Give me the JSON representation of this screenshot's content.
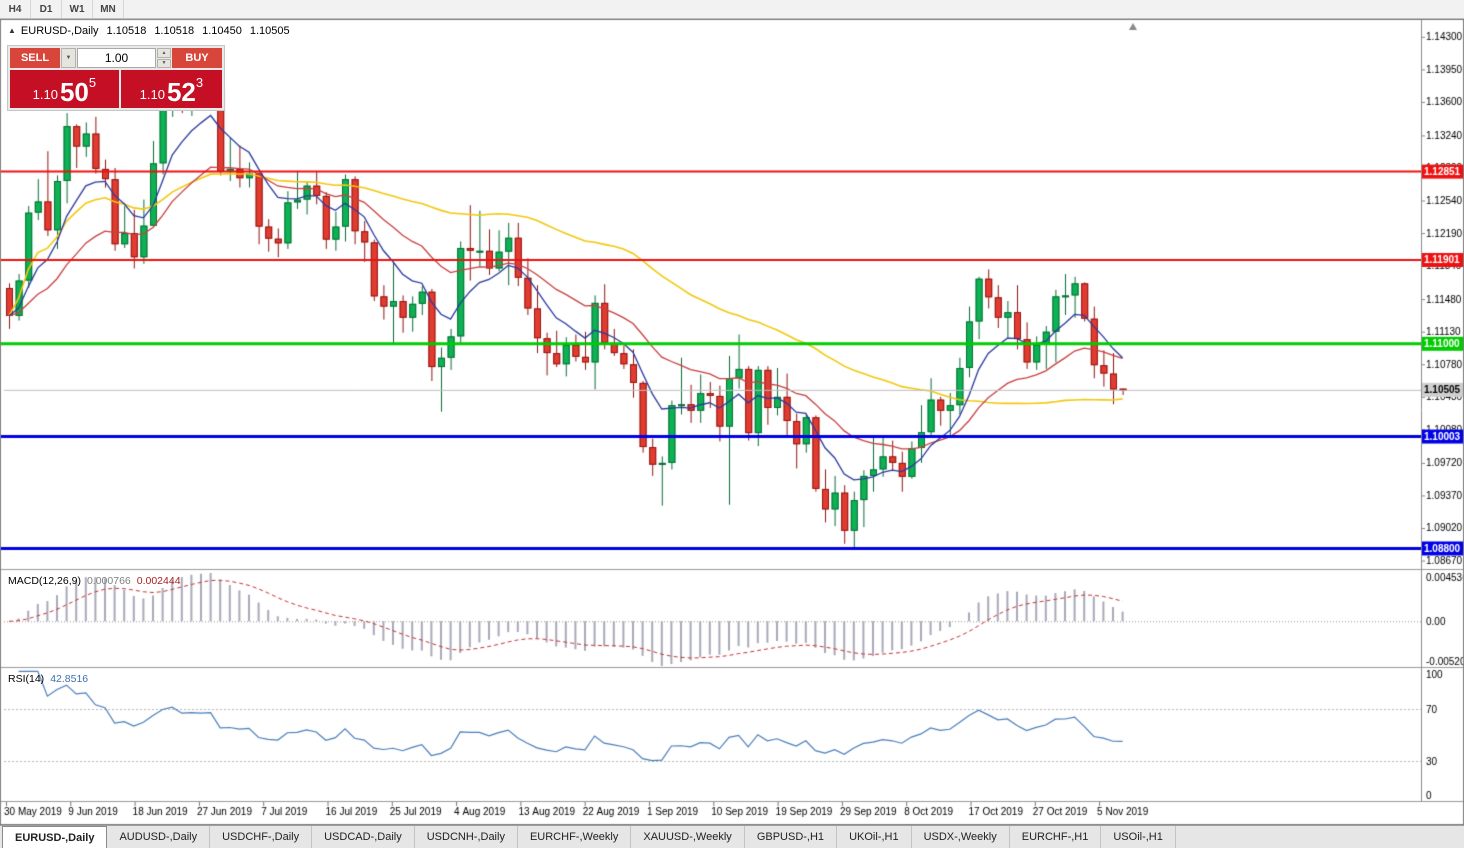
{
  "toolbar": {
    "timeframes": [
      "H4",
      "D1",
      "W1",
      "MN"
    ]
  },
  "chart": {
    "title": {
      "collapse_icon": "▲",
      "symbol": "EURUSD-,Daily",
      "open": "1.10518",
      "high": "1.10518",
      "low": "1.10450",
      "close": "1.10505"
    },
    "scale": {
      "p_max": 1.1447,
      "p_min": 1.0859
    },
    "y_axis_labels": [
      "1.14300",
      "1.13950",
      "1.13600",
      "1.13240",
      "1.12890",
      "1.12540",
      "1.12190",
      "1.11840",
      "1.11480",
      "1.11130",
      "1.10780",
      "1.10430",
      "1.10080",
      "1.09720",
      "1.09370",
      "1.09020",
      "1.08670"
    ],
    "x_axis_labels": [
      "30 May 2019",
      "9 Jun 2019",
      "18 Jun 2019",
      "27 Jun 2019",
      "7 Jul 2019",
      "16 Jul 2019",
      "25 Jul 2019",
      "4 Aug 2019",
      "13 Aug 2019",
      "22 Aug 2019",
      "1 Sep 2019",
      "10 Sep 2019",
      "19 Sep 2019",
      "29 Sep 2019",
      "8 Oct 2019",
      "17 Oct 2019",
      "27 Oct 2019",
      "5 Nov 2019"
    ],
    "price_levels": [
      {
        "value": 1.12851,
        "label": "1.12851",
        "color": "#ee1111",
        "width": 2
      },
      {
        "value": 1.11901,
        "label": "1.11901",
        "color": "#ee1111",
        "width": 2
      },
      {
        "value": 1.11,
        "label": "1.11000",
        "color": "#00cc00",
        "width": 3
      },
      {
        "value": 1.10003,
        "label": "1.10003",
        "color": "#0000e6",
        "width": 3
      },
      {
        "value": 1.088,
        "label": "1.08800",
        "color": "#0000e6",
        "width": 3
      }
    ],
    "current_price": {
      "value": 1.10505,
      "label": "1.10505"
    }
  },
  "trade_panel": {
    "sell_label": "SELL",
    "buy_label": "BUY",
    "volume": "1.00",
    "dropdown_icon": "▼",
    "spinner_up_icon": "▲",
    "spinner_down_icon": "▼",
    "bid": {
      "prefix": "1.10",
      "main": "50",
      "sup": "5"
    },
    "ask": {
      "prefix": "1.10",
      "main": "52",
      "sup": "3"
    }
  },
  "chart_data": {
    "type": "candlestick",
    "symbol": "EURUSD",
    "timeframe": "Daily",
    "first_date": "30 May 2019",
    "last_date": "8 Nov 2019",
    "up_color": "#0db254",
    "down_color": "#e23c31",
    "candles": [
      [
        1.116,
        1.1165,
        1.1116,
        1.113
      ],
      [
        1.113,
        1.1175,
        1.1125,
        1.1168
      ],
      [
        1.1168,
        1.1248,
        1.116,
        1.1241
      ],
      [
        1.1241,
        1.1277,
        1.1233,
        1.1253
      ],
      [
        1.1253,
        1.1307,
        1.1216,
        1.1222
      ],
      [
        1.1222,
        1.1281,
        1.1202,
        1.1275
      ],
      [
        1.1275,
        1.1348,
        1.1251,
        1.1334
      ],
      [
        1.1334,
        1.1336,
        1.1289,
        1.1312
      ],
      [
        1.1312,
        1.1338,
        1.1301,
        1.1326
      ],
      [
        1.1326,
        1.1344,
        1.1283,
        1.1288
      ],
      [
        1.1288,
        1.1298,
        1.1268,
        1.1277
      ],
      [
        1.1277,
        1.1289,
        1.12,
        1.1207
      ],
      [
        1.1207,
        1.1248,
        1.1203,
        1.1219
      ],
      [
        1.1219,
        1.1244,
        1.1181,
        1.1193
      ],
      [
        1.1193,
        1.1255,
        1.1186,
        1.1227
      ],
      [
        1.1227,
        1.1318,
        1.1226,
        1.1294
      ],
      [
        1.1294,
        1.1378,
        1.1282,
        1.1369
      ],
      [
        1.1369,
        1.1412,
        1.1344,
        1.14
      ],
      [
        1.14,
        1.1403,
        1.1348,
        1.1365
      ],
      [
        1.1365,
        1.1391,
        1.1345,
        1.1371
      ],
      [
        1.1371,
        1.139,
        1.1362,
        1.1368
      ],
      [
        1.1368,
        1.1394,
        1.1358,
        1.1373
      ],
      [
        1.1373,
        1.1374,
        1.1281,
        1.1285
      ],
      [
        1.1285,
        1.1322,
        1.1275,
        1.1288
      ],
      [
        1.1288,
        1.1313,
        1.1268,
        1.1278
      ],
      [
        1.1278,
        1.1295,
        1.1268,
        1.1283
      ],
      [
        1.1283,
        1.1286,
        1.1207,
        1.1226
      ],
      [
        1.1226,
        1.1234,
        1.1199,
        1.1213
      ],
      [
        1.1213,
        1.1224,
        1.1193,
        1.1208
      ],
      [
        1.1208,
        1.1264,
        1.1202,
        1.1252
      ],
      [
        1.1252,
        1.1286,
        1.1245,
        1.1255
      ],
      [
        1.1255,
        1.1275,
        1.1239,
        1.127
      ],
      [
        1.127,
        1.1285,
        1.125,
        1.1259
      ],
      [
        1.1259,
        1.1263,
        1.1202,
        1.1212
      ],
      [
        1.1212,
        1.1242,
        1.12,
        1.1226
      ],
      [
        1.1226,
        1.1282,
        1.121,
        1.1277
      ],
      [
        1.1277,
        1.128,
        1.1207,
        1.1221
      ],
      [
        1.1221,
        1.1232,
        1.1188,
        1.1209
      ],
      [
        1.1209,
        1.1212,
        1.1146,
        1.1151
      ],
      [
        1.1151,
        1.1163,
        1.1126,
        1.114
      ],
      [
        1.114,
        1.1187,
        1.1101,
        1.1146
      ],
      [
        1.1146,
        1.1152,
        1.1112,
        1.1128
      ],
      [
        1.1128,
        1.1151,
        1.1113,
        1.1143
      ],
      [
        1.1143,
        1.1162,
        1.1131,
        1.1156
      ],
      [
        1.1156,
        1.1159,
        1.106,
        1.1075
      ],
      [
        1.1075,
        1.1096,
        1.1027,
        1.1085
      ],
      [
        1.1085,
        1.1116,
        1.1072,
        1.1108
      ],
      [
        1.1108,
        1.121,
        1.1101,
        1.1203
      ],
      [
        1.1203,
        1.1249,
        1.1168,
        1.12
      ],
      [
        1.12,
        1.1243,
        1.1183,
        1.12
      ],
      [
        1.12,
        1.1223,
        1.1174,
        1.1181
      ],
      [
        1.1181,
        1.1222,
        1.1178,
        1.1199
      ],
      [
        1.1199,
        1.123,
        1.1163,
        1.1214
      ],
      [
        1.1214,
        1.123,
        1.1162,
        1.1171
      ],
      [
        1.1171,
        1.1192,
        1.1131,
        1.1138
      ],
      [
        1.1138,
        1.1163,
        1.109,
        1.1106
      ],
      [
        1.1106,
        1.1112,
        1.1066,
        1.109
      ],
      [
        1.109,
        1.1114,
        1.1075,
        1.1078
      ],
      [
        1.1078,
        1.1107,
        1.1065,
        1.1099
      ],
      [
        1.1099,
        1.111,
        1.1081,
        1.1086
      ],
      [
        1.1086,
        1.1113,
        1.1072,
        1.108
      ],
      [
        1.108,
        1.1152,
        1.1051,
        1.1144
      ],
      [
        1.1144,
        1.1164,
        1.1094,
        1.1101
      ],
      [
        1.1101,
        1.1116,
        1.1087,
        1.109
      ],
      [
        1.109,
        1.1098,
        1.1073,
        1.1078
      ],
      [
        1.1078,
        1.1094,
        1.1042,
        1.1058
      ],
      [
        1.1058,
        1.106,
        1.0983,
        1.0989
      ],
      [
        1.0989,
        1.0998,
        1.0958,
        1.097
      ],
      [
        1.097,
        1.0979,
        1.0926,
        1.0972
      ],
      [
        1.0972,
        1.1039,
        1.0965,
        1.1034
      ],
      [
        1.1034,
        1.1085,
        1.1024,
        1.1035
      ],
      [
        1.1035,
        1.1056,
        1.1015,
        1.1028
      ],
      [
        1.1028,
        1.1067,
        1.1015,
        1.1047
      ],
      [
        1.1047,
        1.1059,
        1.1031,
        1.1044
      ],
      [
        1.1044,
        1.1055,
        1.0995,
        1.1011
      ],
      [
        1.1011,
        1.1087,
        1.0927,
        1.1063
      ],
      [
        1.1063,
        1.111,
        1.1052,
        1.1073
      ],
      [
        1.1073,
        1.1076,
        1.0996,
        1.1004
      ],
      [
        1.1004,
        1.1076,
        1.099,
        1.1072
      ],
      [
        1.1072,
        1.1076,
        1.1013,
        1.1031
      ],
      [
        1.1031,
        1.1074,
        1.1023,
        1.1043
      ],
      [
        1.1043,
        1.1068,
        1.0999,
        1.1017
      ],
      [
        1.1017,
        1.1025,
        1.0966,
        1.0992
      ],
      [
        1.0992,
        1.1024,
        1.0983,
        1.1021
      ],
      [
        1.1021,
        1.1023,
        1.0941,
        1.0944
      ],
      [
        1.0944,
        1.0965,
        1.0908,
        1.0922
      ],
      [
        1.0922,
        1.0958,
        1.0904,
        1.094
      ],
      [
        1.094,
        1.0948,
        1.0885,
        1.0899
      ],
      [
        1.0899,
        1.0941,
        1.0879,
        1.0932
      ],
      [
        1.0932,
        1.0964,
        1.0903,
        1.0958
      ],
      [
        1.0958,
        1.0999,
        1.0941,
        1.0965
      ],
      [
        1.0965,
        1.0999,
        1.0957,
        1.0979
      ],
      [
        1.0979,
        1.0996,
        1.0963,
        1.0972
      ],
      [
        1.0972,
        1.0984,
        1.0941,
        1.0957
      ],
      [
        1.0957,
        1.0995,
        1.0955,
        1.0988
      ],
      [
        1.0988,
        1.1034,
        1.0972,
        1.1005
      ],
      [
        1.1005,
        1.1063,
        1.1002,
        1.104
      ],
      [
        1.104,
        1.1043,
        1.1012,
        1.1028
      ],
      [
        1.1028,
        1.1047,
        1.1001,
        1.1034
      ],
      [
        1.1034,
        1.1085,
        1.1024,
        1.1074
      ],
      [
        1.1074,
        1.114,
        1.1064,
        1.1124
      ],
      [
        1.1124,
        1.1172,
        1.1105,
        1.117
      ],
      [
        1.117,
        1.118,
        1.1138,
        1.115
      ],
      [
        1.115,
        1.1163,
        1.1117,
        1.1128
      ],
      [
        1.1128,
        1.1146,
        1.1106,
        1.1134
      ],
      [
        1.1134,
        1.1163,
        1.1094,
        1.1105
      ],
      [
        1.1105,
        1.1123,
        1.1073,
        1.108
      ],
      [
        1.108,
        1.1108,
        1.1072,
        1.1099
      ],
      [
        1.1099,
        1.1119,
        1.1073,
        1.1113
      ],
      [
        1.1113,
        1.1158,
        1.108,
        1.1151
      ],
      [
        1.1151,
        1.1175,
        1.1131,
        1.1152
      ],
      [
        1.1152,
        1.1172,
        1.1128,
        1.1165
      ],
      [
        1.1165,
        1.1166,
        1.1124,
        1.1127
      ],
      [
        1.1127,
        1.114,
        1.1063,
        1.1077
      ],
      [
        1.1077,
        1.1093,
        1.1054,
        1.1068
      ],
      [
        1.1068,
        1.109,
        1.1035,
        1.1051
      ],
      [
        1.10518,
        1.10518,
        1.1045,
        1.10505
      ]
    ],
    "moving_averages": [
      {
        "name": "ma-slow",
        "type": "sma",
        "period": 50,
        "color": "#f2c80f",
        "width": 1.6
      },
      {
        "name": "ma-medium",
        "type": "ema",
        "period": 21,
        "color": "#c94040",
        "width": 1.3
      },
      {
        "name": "ma-fast",
        "type": "ema",
        "period": 8,
        "color": "#2b3a9e",
        "width": 1.3
      }
    ]
  },
  "macd": {
    "name": "MACD(12,26,9)",
    "value_main": "0.000766",
    "value_signal": "0.002444",
    "axis": [
      "0.004536",
      "0.00",
      "-0.005205"
    ],
    "fast": 12,
    "slow": 26,
    "signal": 9
  },
  "rsi": {
    "name": "RSI(14)",
    "value": "42.8516",
    "period": 14,
    "axis": [
      "100",
      "70",
      "30",
      "0"
    ],
    "levels": [
      70,
      30
    ]
  },
  "tabs": [
    {
      "label": "EURUSD-,Daily",
      "active": true
    },
    {
      "label": "AUDUSD-,Daily"
    },
    {
      "label": "USDCHF-,Daily"
    },
    {
      "label": "USDCAD-,Daily"
    },
    {
      "label": "USDCNH-,Daily"
    },
    {
      "label": "EURCHF-,Weekly"
    },
    {
      "label": "XAUUSD-,Weekly"
    },
    {
      "label": "GBPUSD-,H1"
    },
    {
      "label": "UKOil-,H1"
    },
    {
      "label": "USDX-,Weekly"
    },
    {
      "label": "EURCHF-,H1"
    },
    {
      "label": "USOil-,H1"
    }
  ]
}
